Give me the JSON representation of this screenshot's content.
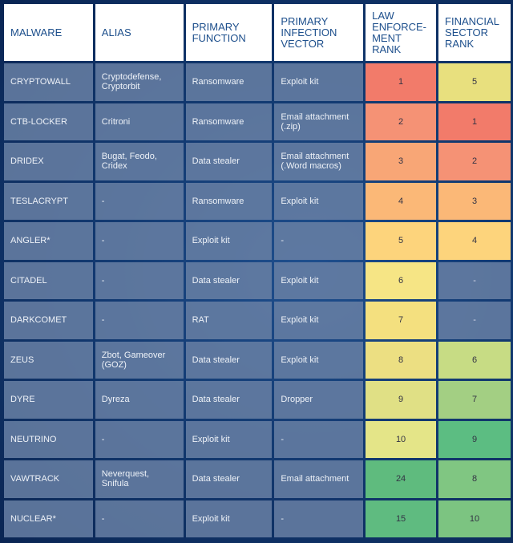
{
  "headers": [
    "MALWARE",
    "ALIAS",
    "PRIMARY FUNCTION",
    "PRIMARY INFECTION VECTOR",
    "LAW ENFORCE-MENT RANK",
    "FINANCIAL SECTOR RANK"
  ],
  "rows": [
    {
      "malware": "CRYPTOWALL",
      "alias": "Cryptodefense, Cryptorbit",
      "function": "Ransomware",
      "vector": "Exploit kit",
      "le_rank": "1",
      "fin_rank": "5",
      "le_color": "#f27b6a",
      "fin_color": "#e8e07e"
    },
    {
      "malware": "CTB-LOCKER",
      "alias": "Critroni",
      "function": "Ransomware",
      "vector": "Email attachment (.zip)",
      "le_rank": "2",
      "fin_rank": "1",
      "le_color": "#f59275",
      "fin_color": "#f27b6a"
    },
    {
      "malware": "DRIDEX",
      "alias": "Bugat, Feodo, Cridex",
      "function": "Data stealer",
      "vector": "Email attachment (.Word macros)",
      "le_rank": "3",
      "fin_rank": "2",
      "le_color": "#f8a676",
      "fin_color": "#f59275"
    },
    {
      "malware": "TESLACRYPT",
      "alias": "-",
      "function": "Ransomware",
      "vector": "Exploit kit",
      "le_rank": "4",
      "fin_rank": "3",
      "le_color": "#fbb877",
      "fin_color": "#fbb877"
    },
    {
      "malware": "ANGLER*",
      "alias": "-",
      "function": "Exploit kit",
      "vector": "-",
      "le_rank": "5",
      "fin_rank": "4",
      "le_color": "#fdd47c",
      "fin_color": "#fdd47c"
    },
    {
      "malware": "CITADEL",
      "alias": "-",
      "function": "Data stealer",
      "vector": "Exploit kit",
      "le_rank": "6",
      "fin_rank": "-",
      "le_color": "#f6e585",
      "fin_color": ""
    },
    {
      "malware": "DARKCOMET",
      "alias": "-",
      "function": "RAT",
      "vector": "Exploit kit",
      "le_rank": "7",
      "fin_rank": "-",
      "le_color": "#f4e07f",
      "fin_color": ""
    },
    {
      "malware": "ZEUS",
      "alias": "Zbot, Gameover (GOZ)",
      "function": "Data stealer",
      "vector": "Exploit kit",
      "le_rank": "8",
      "fin_rank": "6",
      "le_color": "#ecdf82",
      "fin_color": "#c7dc84"
    },
    {
      "malware": "DYRE",
      "alias": "Dyreza",
      "function": "Data stealer",
      "vector": "Dropper",
      "le_rank": "9",
      "fin_rank": "7",
      "le_color": "#e0e085",
      "fin_color": "#a3cf83"
    },
    {
      "malware": "NEUTRINO",
      "alias": "-",
      "function": "Exploit kit",
      "vector": "-",
      "le_rank": "10",
      "fin_rank": "9",
      "le_color": "#e4e588",
      "fin_color": "#5cbd82"
    },
    {
      "malware": "VAWTRACK",
      "alias": "Neverquest, Snifula",
      "function": "Data stealer",
      "vector": "Email attachment",
      "le_rank": "24",
      "fin_rank": "8",
      "le_color": "#5fbb7e",
      "fin_color": "#80c682"
    },
    {
      "malware": "NUCLEAR*",
      "alias": "-",
      "function": "Exploit kit",
      "vector": "-",
      "le_rank": "15",
      "fin_rank": "10",
      "le_color": "#5fbb80",
      "fin_color": "#7cc481"
    }
  ]
}
